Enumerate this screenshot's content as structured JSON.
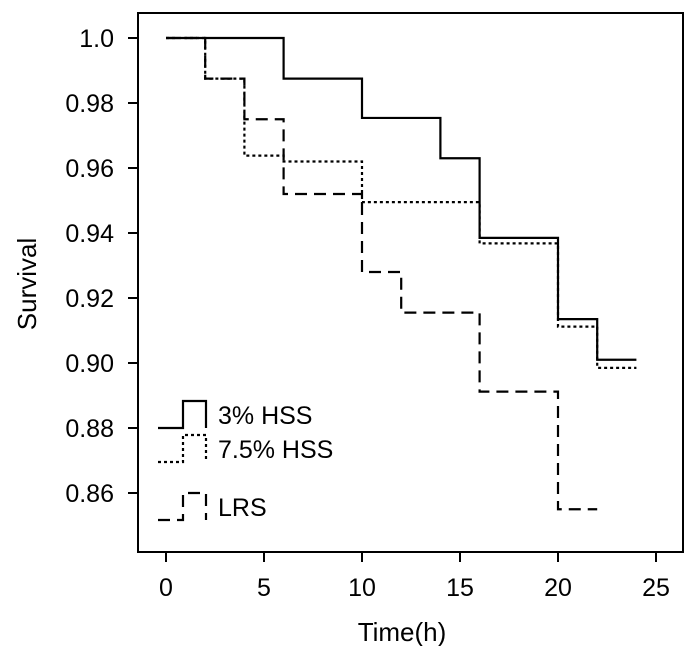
{
  "chart_data": {
    "type": "line",
    "step": true,
    "title": "",
    "xlabel": "Time(h)",
    "ylabel": "Survival",
    "xlim": [
      -1.5,
      26
    ],
    "ylim": [
      0.844,
      1.004
    ],
    "xticks": [
      0,
      5,
      10,
      15,
      20,
      25
    ],
    "xtick_labels": [
      "0",
      "5",
      "10",
      "15",
      "20",
      "25"
    ],
    "yticks": [
      0.86,
      0.88,
      0.9,
      0.92,
      0.94,
      0.96,
      0.98,
      1.0
    ],
    "ytick_labels": [
      "0.86",
      "0.88",
      "0.90",
      "0.92",
      "0.94",
      "0.96",
      "0.98",
      "1.0"
    ],
    "grid": false,
    "legend_position": "bottom-left",
    "series": [
      {
        "name": "3% HSS",
        "line_style": "solid",
        "x": [
          0,
          2,
          6,
          10,
          14,
          16,
          20,
          22,
          24
        ],
        "y": [
          1.0,
          1.0,
          0.9875,
          0.9754,
          0.963,
          0.9385,
          0.9135,
          0.901,
          0.901
        ]
      },
      {
        "name": "7.5% HSS",
        "line_style": "dotted",
        "x": [
          0,
          2,
          4,
          6,
          10,
          16,
          20,
          22,
          24
        ],
        "y": [
          1.0,
          0.9875,
          0.9638,
          0.962,
          0.9495,
          0.9368,
          0.9112,
          0.8985,
          0.8985
        ]
      },
      {
        "name": "LRS",
        "line_style": "dashed",
        "x": [
          0,
          2,
          4,
          6,
          10,
          12,
          16,
          20,
          22
        ],
        "y": [
          1.0,
          0.9875,
          0.975,
          0.952,
          0.928,
          0.9155,
          0.8912,
          0.855,
          0.855
        ]
      }
    ]
  }
}
